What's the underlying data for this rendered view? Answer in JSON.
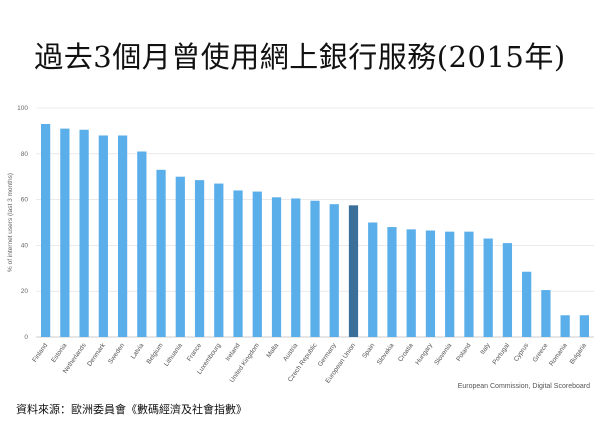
{
  "page": {
    "title": "過去3個月曾使用網上銀行服務(2015年)",
    "chart_source": "European Commission, Digital Scoreboard",
    "source_note": "資料來源：歐洲委員會《數碼經濟及社會指數》"
  },
  "colors": {
    "bar": "#5aaeea",
    "highlight": "#3a6f9a",
    "grid": "#dddddd",
    "axis": "#999999"
  },
  "chart_data": {
    "type": "bar",
    "title": "過去3個月曾使用網上銀行服務(2015年)",
    "xlabel": "",
    "ylabel": "% of internet users (last 3 months)",
    "ylim": [
      0,
      100
    ],
    "yticks": [
      0,
      20,
      40,
      60,
      80,
      100
    ],
    "grid": true,
    "highlight_category": "European Union",
    "categories": [
      "Finland",
      "Estonia",
      "Netherlands",
      "Denmark",
      "Sweden",
      "Latvia",
      "Belgium",
      "Lithuania",
      "France",
      "Luxembourg",
      "Ireland",
      "United Kingdom",
      "Malta",
      "Austria",
      "Czech Republic",
      "Germany",
      "European Union",
      "Spain",
      "Slovakia",
      "Croatia",
      "Hungary",
      "Slovenia",
      "Poland",
      "Italy",
      "Portugal",
      "Cyprus",
      "Greece",
      "Romania",
      "Bulgaria"
    ],
    "values": [
      93,
      91,
      90.5,
      88,
      88,
      81,
      73,
      70,
      68.5,
      67,
      64,
      63.5,
      61,
      60.5,
      59.5,
      58,
      57.5,
      50,
      48,
      47,
      46.5,
      46,
      46,
      43,
      41,
      28.5,
      20.5,
      9.5,
      9.5
    ]
  }
}
